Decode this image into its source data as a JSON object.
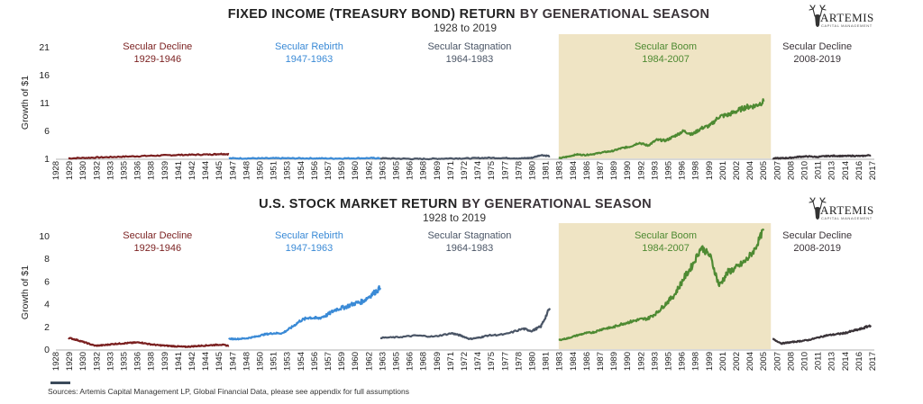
{
  "source_note": "Sources: Artemis Capital Management LP, Global Financial Data, please see appendix for full assumptions",
  "logo": {
    "name": "ARTEMIS",
    "tagline": "CAPITAL MANAGEMENT",
    "icon": "stag-antlers-icon"
  },
  "colors": {
    "secular_decline_1": "#7a1f1f",
    "secular_rebirth": "#3a8ad6",
    "secular_stagnation": "#4a5566",
    "secular_boom": "#4e8a32",
    "secular_decline_2": "#3a3338",
    "boom_shading": "#efe4c4",
    "title_dark": "#222222",
    "title_accent": "#3a3338"
  },
  "x_tick_labels": [
    "1928",
    "1929",
    "1930",
    "1932",
    "1933",
    "1935",
    "1936",
    "1938",
    "1939",
    "1941",
    "1942",
    "1944",
    "1945",
    "1947",
    "1948",
    "1950",
    "1951",
    "1953",
    "1954",
    "1956",
    "1957",
    "1959",
    "1960",
    "1962",
    "1963",
    "1965",
    "1966",
    "1968",
    "1969",
    "1971",
    "1972",
    "1974",
    "1975",
    "1977",
    "1978",
    "1980",
    "1981",
    "1983",
    "1984",
    "1986",
    "1987",
    "1989",
    "1990",
    "1992",
    "1993",
    "1995",
    "1996",
    "1998",
    "1999",
    "2001",
    "2002",
    "2004",
    "2005",
    "2007",
    "2008",
    "2010",
    "2011",
    "2013",
    "2014",
    "2016",
    "2017"
  ],
  "chart_data": [
    {
      "type": "line",
      "title_main": "FIXED INCOME (TREASURY BOND) RETURN",
      "title_accent": "BY GENERATIONAL SEASON",
      "subtitle": "1928 to 2019",
      "ylabel": "Growth of $1",
      "ylim": [
        1,
        21
      ],
      "yticks": [
        "1",
        "6",
        "11",
        "16",
        "21"
      ],
      "xlim": [
        1928,
        2019
      ],
      "shaded_period": [
        1984,
        2007
      ],
      "eras": [
        {
          "name": "Secular Decline",
          "years": "1929-1946",
          "color_key": "secular_decline_1",
          "label_center": 1939
        },
        {
          "name": "Secular Rebirth",
          "years": "1947-1963",
          "color_key": "secular_rebirth",
          "label_center": 1956
        },
        {
          "name": "Secular Stagnation",
          "years": "1964-1983",
          "color_key": "secular_stagnation",
          "label_center": 1974
        },
        {
          "name": "Secular Boom",
          "years": "1984-2007",
          "color_key": "secular_boom",
          "label_center": 1996
        },
        {
          "name": "Secular Decline",
          "years": "2008-2019",
          "color_key": "secular_decline_2",
          "label_center": 2013
        }
      ],
      "series": [
        {
          "color_key": "secular_decline_1",
          "x": [
            1929,
            1931,
            1933,
            1935,
            1937,
            1939,
            1941,
            1943,
            1945,
            1946,
            1947
          ],
          "y": [
            1.0,
            1.1,
            1.2,
            1.3,
            1.4,
            1.5,
            1.6,
            1.65,
            1.7,
            1.8,
            1.75
          ]
        },
        {
          "color_key": "secular_rebirth",
          "x": [
            1947,
            1949,
            1951,
            1953,
            1955,
            1957,
            1959,
            1961,
            1963,
            1964
          ],
          "y": [
            1.0,
            1.01,
            1.0,
            1.02,
            1.01,
            1.0,
            0.98,
            1.02,
            1.05,
            1.0
          ]
        },
        {
          "color_key": "secular_stagnation",
          "x": [
            1964,
            1966,
            1968,
            1970,
            1972,
            1974,
            1976,
            1978,
            1980,
            1981,
            1982,
            1983
          ],
          "y": [
            1.0,
            0.95,
            0.9,
            0.92,
            1.0,
            1.0,
            1.1,
            1.05,
            1.0,
            1.1,
            1.6,
            1.4
          ]
        },
        {
          "color_key": "secular_boom",
          "x": [
            1984,
            1985,
            1986,
            1987,
            1988,
            1989,
            1990,
            1991,
            1992,
            1993,
            1994,
            1995,
            1996,
            1997,
            1998,
            1999,
            2000,
            2001,
            2002,
            2003,
            2004,
            2005,
            2006,
            2007
          ],
          "y": [
            1.0,
            1.3,
            1.7,
            1.6,
            1.8,
            2.1,
            2.3,
            2.8,
            3.1,
            3.8,
            3.3,
            4.3,
            4.2,
            5.0,
            5.9,
            5.3,
            6.4,
            6.9,
            8.5,
            8.8,
            9.5,
            10.2,
            10.4,
            11.2
          ]
        },
        {
          "color_key": "secular_decline_2",
          "x": [
            2008,
            2009,
            2010,
            2011,
            2012,
            2013,
            2014,
            2015,
            2016,
            2017,
            2018,
            2019
          ],
          "y": [
            1.0,
            1.02,
            1.1,
            1.3,
            1.35,
            1.25,
            1.4,
            1.45,
            1.4,
            1.45,
            1.4,
            1.6
          ]
        }
      ]
    },
    {
      "type": "line",
      "title_main": "U.S. STOCK MARKET RETURN",
      "title_accent": "BY GENERATIONAL SEASON",
      "subtitle": "1928 to 2019",
      "ylabel": "Growth of $1",
      "ylim": [
        0,
        10
      ],
      "yticks": [
        "0",
        "2",
        "4",
        "6",
        "8",
        "10"
      ],
      "xlim": [
        1928,
        2019
      ],
      "shaded_period": [
        1984,
        2007
      ],
      "eras": [
        {
          "name": "Secular Decline",
          "years": "1929-1946",
          "color_key": "secular_decline_1",
          "label_center": 1939
        },
        {
          "name": "Secular Rebirth",
          "years": "1947-1963",
          "color_key": "secular_rebirth",
          "label_center": 1956
        },
        {
          "name": "Secular Stagnation",
          "years": "1964-1983",
          "color_key": "secular_stagnation",
          "label_center": 1974
        },
        {
          "name": "Secular Boom",
          "years": "1984-2007",
          "color_key": "secular_boom",
          "label_center": 1996
        },
        {
          "name": "Secular Decline",
          "years": "2008-2019",
          "color_key": "secular_decline_2",
          "label_center": 2013
        }
      ],
      "series": [
        {
          "color_key": "secular_decline_1",
          "x": [
            1929,
            1930,
            1931,
            1932,
            1933,
            1934,
            1935,
            1936,
            1937,
            1938,
            1939,
            1940,
            1941,
            1942,
            1943,
            1944,
            1945,
            1946,
            1947
          ],
          "y": [
            1.0,
            0.8,
            0.55,
            0.3,
            0.35,
            0.45,
            0.5,
            0.55,
            0.6,
            0.45,
            0.35,
            0.3,
            0.25,
            0.2,
            0.25,
            0.3,
            0.35,
            0.4,
            0.3
          ]
        },
        {
          "color_key": "secular_rebirth",
          "x": [
            1947,
            1948,
            1949,
            1950,
            1951,
            1952,
            1953,
            1954,
            1955,
            1956,
            1957,
            1958,
            1959,
            1960,
            1961,
            1962,
            1963,
            1964
          ],
          "y": [
            0.9,
            0.9,
            0.95,
            1.1,
            1.3,
            1.4,
            1.4,
            1.9,
            2.5,
            2.8,
            2.7,
            3.0,
            3.5,
            3.7,
            4.0,
            4.2,
            4.8,
            5.4
          ]
        },
        {
          "color_key": "secular_stagnation",
          "x": [
            1964,
            1966,
            1968,
            1970,
            1972,
            1973,
            1974,
            1975,
            1976,
            1978,
            1980,
            1981,
            1982,
            1983
          ],
          "y": [
            1.0,
            1.05,
            1.2,
            1.1,
            1.4,
            1.2,
            0.9,
            1.0,
            1.2,
            1.3,
            1.8,
            1.6,
            2.0,
            3.6
          ]
        },
        {
          "color_key": "secular_boom",
          "x": [
            1984,
            1985,
            1986,
            1987,
            1988,
            1989,
            1990,
            1991,
            1992,
            1993,
            1994,
            1995,
            1996,
            1997,
            1998,
            1999,
            2000,
            2001,
            2002,
            2003,
            2004,
            2005,
            2006,
            2007
          ],
          "y": [
            0.8,
            0.95,
            1.2,
            1.4,
            1.5,
            1.8,
            1.9,
            2.2,
            2.4,
            2.6,
            2.7,
            3.2,
            4.0,
            4.8,
            6.2,
            7.4,
            9.0,
            8.2,
            5.6,
            6.8,
            7.2,
            7.8,
            8.8,
            10.6
          ]
        },
        {
          "color_key": "secular_decline_2",
          "x": [
            2008,
            2009,
            2010,
            2011,
            2012,
            2013,
            2014,
            2015,
            2016,
            2017,
            2018,
            2019
          ],
          "y": [
            0.9,
            0.5,
            0.6,
            0.7,
            0.8,
            1.0,
            1.2,
            1.3,
            1.4,
            1.6,
            1.8,
            2.1
          ]
        }
      ]
    }
  ]
}
